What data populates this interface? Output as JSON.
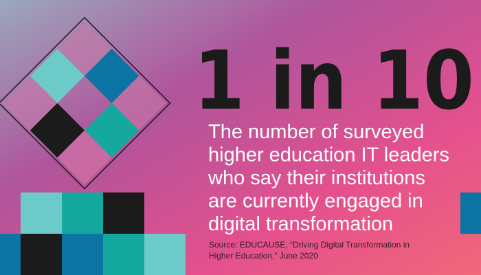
{
  "headline": "1 in 10",
  "description": [
    "The number of surveyed",
    "higher education IT leaders",
    "who say their institutions",
    "are currently engaged in",
    "digital transformation"
  ],
  "source": [
    "Source: EDUCAUSE, “Driving Digital Transformation in",
    "Higher Education,” June 2020"
  ]
}
